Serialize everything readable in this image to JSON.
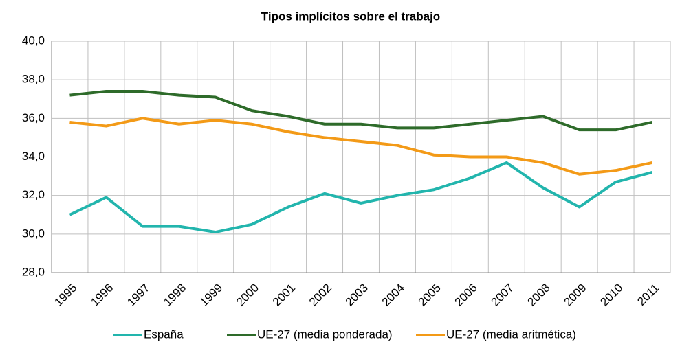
{
  "chart_data": {
    "type": "line",
    "title": "Tipos implícitos sobre el trabajo",
    "categories": [
      "1995",
      "1996",
      "1997",
      "1998",
      "1999",
      "2000",
      "2001",
      "2002",
      "2003",
      "2004",
      "2005",
      "2006",
      "2007",
      "2008",
      "2009",
      "2010",
      "2011"
    ],
    "series": [
      {
        "name": "España",
        "color": "#22b5ad",
        "values": [
          31.0,
          31.9,
          30.4,
          30.4,
          30.1,
          30.5,
          31.4,
          32.1,
          31.6,
          32.0,
          32.3,
          32.9,
          33.7,
          32.4,
          31.4,
          32.7,
          33.2
        ]
      },
      {
        "name": "UE-27 (media ponderada)",
        "color": "#2e6b2a",
        "values": [
          37.2,
          37.4,
          37.4,
          37.2,
          37.1,
          36.4,
          36.1,
          35.7,
          35.7,
          35.5,
          35.5,
          35.7,
          35.9,
          36.1,
          35.4,
          35.4,
          35.8
        ]
      },
      {
        "name": "UE-27 (media aritmética)",
        "color": "#f39a17",
        "values": [
          35.8,
          35.6,
          36.0,
          35.7,
          35.9,
          35.7,
          35.3,
          35.0,
          34.8,
          34.6,
          34.1,
          34.0,
          34.0,
          33.7,
          33.1,
          33.3,
          33.7
        ]
      }
    ],
    "ylim": [
      28,
      40
    ],
    "yticks": [
      {
        "value": 28,
        "label": "28,0"
      },
      {
        "value": 30,
        "label": "30,0"
      },
      {
        "value": 32,
        "label": "32,0"
      },
      {
        "value": 34,
        "label": "34,0"
      },
      {
        "value": 36,
        "label": "36,0"
      },
      {
        "value": 38,
        "label": "38,0"
      },
      {
        "value": 40,
        "label": "40,0"
      }
    ],
    "grid": true,
    "legend": "bottom"
  }
}
